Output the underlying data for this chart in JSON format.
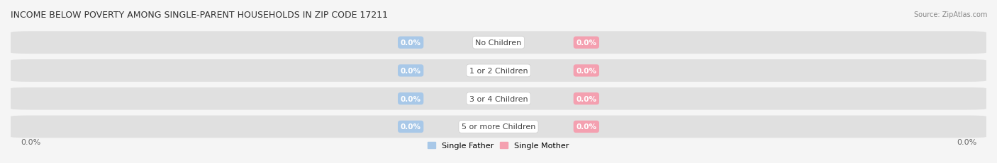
{
  "title": "INCOME BELOW POVERTY AMONG SINGLE-PARENT HOUSEHOLDS IN ZIP CODE 17211",
  "source": "Source: ZipAtlas.com",
  "categories": [
    "No Children",
    "1 or 2 Children",
    "3 or 4 Children",
    "5 or more Children"
  ],
  "father_values": [
    0.0,
    0.0,
    0.0,
    0.0
  ],
  "mother_values": [
    0.0,
    0.0,
    0.0,
    0.0
  ],
  "father_color": "#a8c8e8",
  "mother_color": "#f4a0b0",
  "row_bg_color": "#e0e0e0",
  "fig_bg_color": "#f5f5f5",
  "xlim": [
    -1,
    1
  ],
  "x_axis_label_left": "0.0%",
  "x_axis_label_right": "0.0%",
  "legend_father": "Single Father",
  "legend_mother": "Single Mother",
  "title_fontsize": 9,
  "source_fontsize": 7,
  "bar_height": 0.6,
  "figsize": [
    14.06,
    2.32
  ],
  "dpi": 100
}
